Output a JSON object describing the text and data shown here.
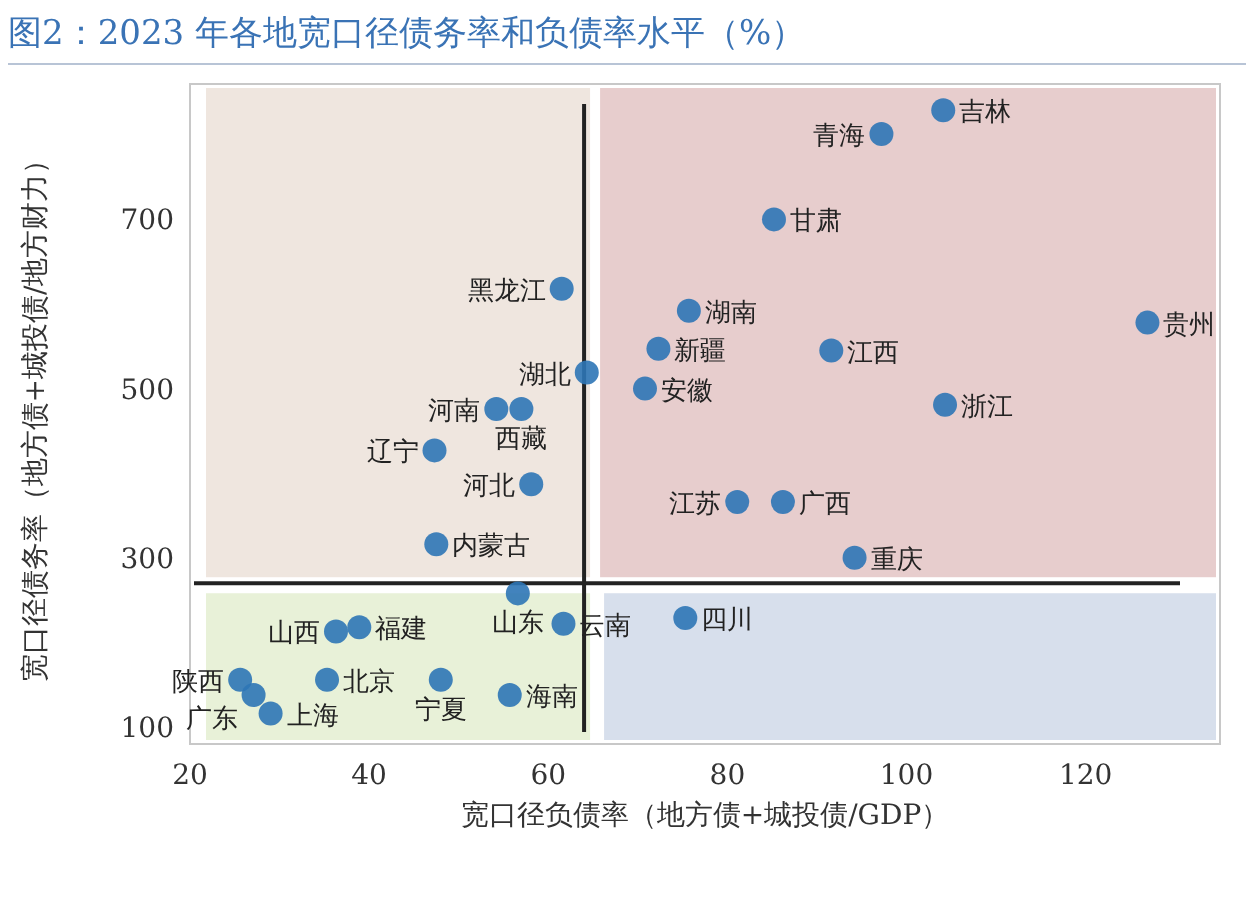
{
  "chart_data": {
    "type": "scatter",
    "title": "图2：2023 年各地宽口径债务率和负债率水平（%）",
    "xlabel": "宽口径负债率（地方债+城投债/GDP）",
    "ylabel": "宽口径债务率（地方债+城投债/地方财力）",
    "xlim": [
      20,
      135
    ],
    "xticks": [
      20,
      40,
      60,
      80,
      100,
      120
    ],
    "ylim": [
      80,
      860
    ],
    "yticks": [
      100,
      300,
      500,
      700
    ],
    "grid": false,
    "legend": false,
    "marker": "circle",
    "ref_lines": [
      {
        "axis": "x",
        "value": 64,
        "color": "#222222"
      },
      {
        "axis": "y",
        "value": 270,
        "color": "#222222"
      }
    ],
    "series": [
      {
        "name": "吉林",
        "color": "#2e75b6",
        "x": [
          104.1
        ],
        "values": [
          829
        ]
      },
      {
        "name": "青海",
        "color": "#2e75b6",
        "x": [
          97.2
        ],
        "values": [
          801
        ]
      },
      {
        "name": "甘肃",
        "color": "#2e75b6",
        "x": [
          85.2
        ],
        "values": [
          700
        ]
      },
      {
        "name": "黑龙江",
        "color": "#2e75b6",
        "x": [
          61.5
        ],
        "values": [
          618
        ]
      },
      {
        "name": "湖南",
        "color": "#2e75b6",
        "x": [
          75.7
        ],
        "values": [
          592
        ]
      },
      {
        "name": "新疆",
        "color": "#2e75b6",
        "x": [
          72.3
        ],
        "values": [
          547
        ]
      },
      {
        "name": "安徽",
        "color": "#2e75b6",
        "x": [
          70.8
        ],
        "values": [
          500
        ]
      },
      {
        "name": "江西",
        "color": "#2e75b6",
        "x": [
          91.6
        ],
        "values": [
          545
        ]
      },
      {
        "name": "贵州",
        "color": "#2e75b6",
        "x": [
          126.9
        ],
        "values": [
          578
        ]
      },
      {
        "name": "浙江",
        "color": "#2e75b6",
        "x": [
          104.3
        ],
        "values": [
          481
        ]
      },
      {
        "name": "湖北",
        "color": "#2e75b6",
        "x": [
          64.3
        ],
        "values": [
          519
        ]
      },
      {
        "name": "河南",
        "color": "#2e75b6",
        "x": [
          54.2
        ],
        "values": [
          476
        ]
      },
      {
        "name": "西藏",
        "color": "#2e75b6",
        "x": [
          57.0
        ],
        "values": [
          476
        ]
      },
      {
        "name": "辽宁",
        "color": "#2e75b6",
        "x": [
          47.3
        ],
        "values": [
          427
        ]
      },
      {
        "name": "河北",
        "color": "#2e75b6",
        "x": [
          58.1
        ],
        "values": [
          387
        ]
      },
      {
        "name": "江苏",
        "color": "#2e75b6",
        "x": [
          81.1
        ],
        "values": [
          366
        ]
      },
      {
        "name": "广西",
        "color": "#2e75b6",
        "x": [
          86.2
        ],
        "values": [
          366
        ]
      },
      {
        "name": "重庆",
        "color": "#2e75b6",
        "x": [
          94.2
        ],
        "values": [
          300
        ]
      },
      {
        "name": "内蒙古",
        "color": "#2e75b6",
        "x": [
          47.5
        ],
        "values": [
          316
        ]
      },
      {
        "name": "山东",
        "color": "#2e75b6",
        "x": [
          56.6
        ],
        "values": [
          258
        ]
      },
      {
        "name": "云南",
        "color": "#2e75b6",
        "x": [
          61.7
        ],
        "values": [
          222
        ]
      },
      {
        "name": "四川",
        "color": "#2e75b6",
        "x": [
          75.3
        ],
        "values": [
          229
        ]
      },
      {
        "name": "山西",
        "color": "#2e75b6",
        "x": [
          36.3
        ],
        "values": [
          213
        ]
      },
      {
        "name": "福建",
        "color": "#2e75b6",
        "x": [
          38.9
        ],
        "values": [
          218
        ]
      },
      {
        "name": "北京",
        "color": "#2e75b6",
        "x": [
          35.3
        ],
        "values": [
          156
        ]
      },
      {
        "name": "宁夏",
        "color": "#2e75b6",
        "x": [
          48.0
        ],
        "values": [
          156
        ]
      },
      {
        "name": "海南",
        "color": "#2e75b6",
        "x": [
          55.7
        ],
        "values": [
          138
        ]
      },
      {
        "name": "陕西",
        "color": "#2e75b6",
        "x": [
          25.6
        ],
        "values": [
          156
        ]
      },
      {
        "name": "广东",
        "color": "#2e75b6",
        "x": [
          27.1
        ],
        "values": [
          138
        ]
      },
      {
        "name": "上海",
        "color": "#2e75b6",
        "x": [
          29.0
        ],
        "values": [
          116
        ]
      }
    ]
  }
}
